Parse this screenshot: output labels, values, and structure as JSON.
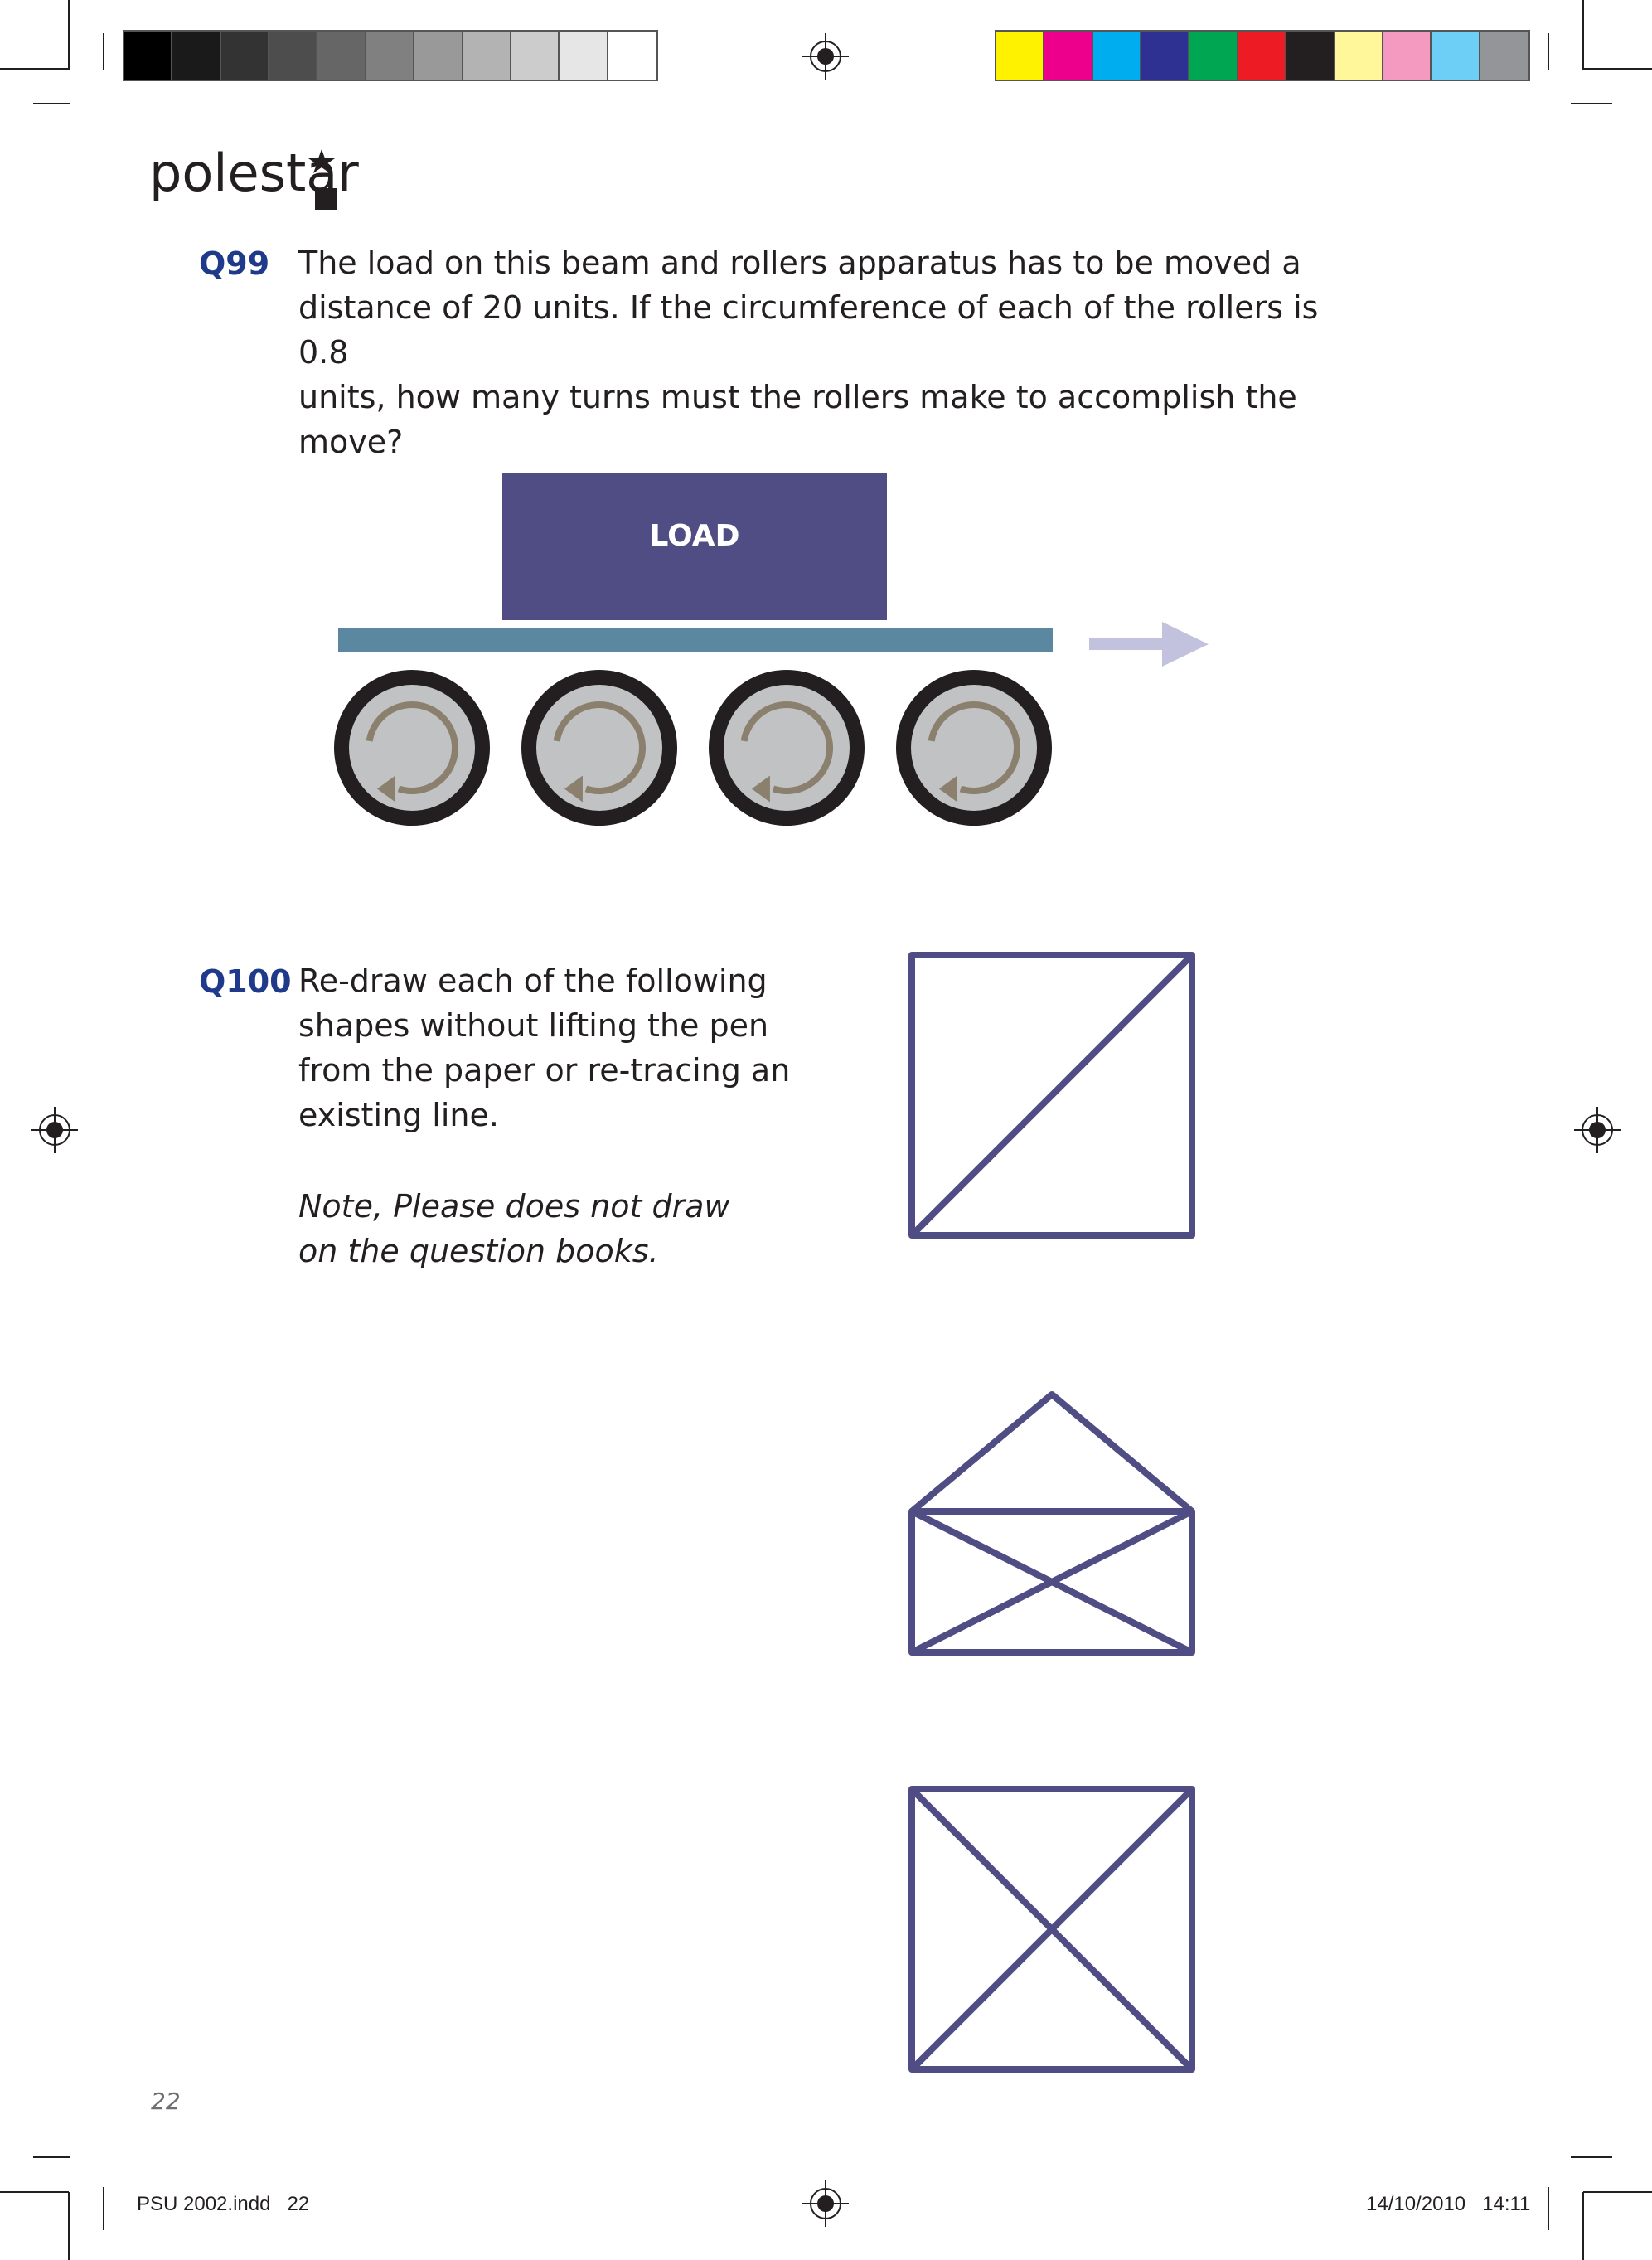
{
  "colors": {
    "question_number": "#1f3a8a",
    "load_box": "#4f4d84",
    "beam": "#5b87a0",
    "roller_outer": "#231f20",
    "roller_inner": "#c0c2c4",
    "roller_arrow": "#8b806d",
    "direction_arrow": "#c3c2de",
    "shape_stroke": "#4f4d84"
  },
  "registration_bar_gray": [
    "#000000",
    "#1a1a1a",
    "#333333",
    "#4d4d4d",
    "#666666",
    "#808080",
    "#999999",
    "#b3b3b3",
    "#cccccc",
    "#e6e6e6",
    "#ffffff"
  ],
  "registration_bar_color": [
    "#fff200",
    "#ec008c",
    "#00aeef",
    "#2e3192",
    "#00a651",
    "#ed1c24",
    "#231f20",
    "#fff799",
    "#f49ac1",
    "#6dcff6",
    "#939598"
  ],
  "logo": {
    "text": "polestar"
  },
  "q99": {
    "number": "Q99",
    "text": "The load on this beam and rollers apparatus has to be moved a\ndistance of 20 units. If the circumference of each of the rollers is 0.8\nunits, how many turns must the rollers make to accomplish the\nmove?",
    "diagram": {
      "load_label": "LOAD",
      "rollers": 4
    }
  },
  "q100": {
    "number": "Q100",
    "text": "Re-draw each of the following\nshapes without lifting the pen\nfrom the paper or re-tracing an\nexisting line.",
    "note": "Note, Please does not draw\non the question books.",
    "shapes": [
      {
        "name": "square-with-diagonal"
      },
      {
        "name": "open-envelope"
      },
      {
        "name": "square-with-cross"
      }
    ]
  },
  "footer": {
    "page_number": "22",
    "file_slug": "PSU 2002.indd   22",
    "date_slug": "14/10/2010   14:11"
  }
}
